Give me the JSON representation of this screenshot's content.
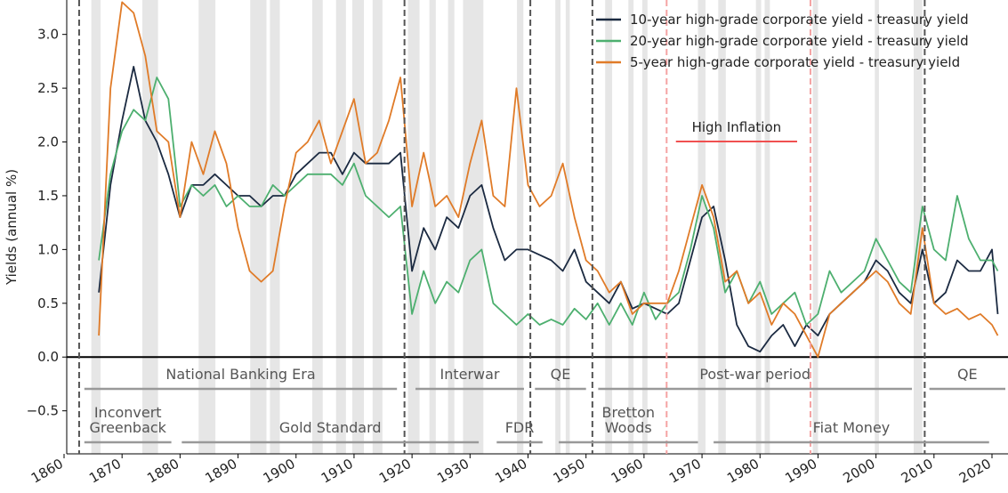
{
  "chart_data": {
    "type": "line",
    "ylabel": "Yields (annual %)",
    "xlim": [
      1860,
      2022.3
    ],
    "ylim": [
      -0.9,
      3.32
    ],
    "xticks": [
      1860,
      1870,
      1880,
      1890,
      1900,
      1910,
      1920,
      1930,
      1940,
      1950,
      1960,
      1970,
      1980,
      1990,
      2000,
      2010,
      2020
    ],
    "yticks": [
      {
        "value": -0.5,
        "label": "−0.5"
      },
      {
        "value": 0,
        "label": "0.0"
      },
      0.5,
      {
        "value": 1,
        "label": "1.0"
      },
      1.5,
      {
        "value": 2,
        "label": "2.0"
      },
      2.5,
      {
        "value": 3,
        "label": "3.0"
      }
    ],
    "legend": "upper right",
    "x": [
      1866,
      1868,
      1870,
      1872,
      1874,
      1876,
      1878,
      1880,
      1882,
      1884,
      1886,
      1888,
      1890,
      1892,
      1894,
      1896,
      1898,
      1900,
      1902,
      1904,
      1906,
      1908,
      1910,
      1912,
      1914,
      1916,
      1918,
      1920,
      1922,
      1924,
      1926,
      1928,
      1930,
      1932,
      1934,
      1936,
      1938,
      1940,
      1942,
      1944,
      1946,
      1948,
      1950,
      1952,
      1954,
      1956,
      1958,
      1960,
      1962,
      1964,
      1966,
      1968,
      1970,
      1972,
      1974,
      1976,
      1978,
      1980,
      1982,
      1984,
      1986,
      1988,
      1990,
      1992,
      1994,
      1996,
      1998,
      2000,
      2002,
      2004,
      2006,
      2008,
      2010,
      2012,
      2014,
      2016,
      2018,
      2020,
      2021
    ],
    "series": [
      {
        "name": "10-year high-grade corporate yield - treasury yield",
        "color": "#1b2a41",
        "values": [
          0.6,
          1.6,
          2.2,
          2.7,
          2.2,
          2.0,
          1.7,
          1.3,
          1.6,
          1.6,
          1.7,
          1.6,
          1.5,
          1.5,
          1.4,
          1.5,
          1.5,
          1.7,
          1.8,
          1.9,
          1.9,
          1.7,
          1.9,
          1.8,
          1.8,
          1.8,
          1.9,
          0.8,
          1.2,
          1.0,
          1.3,
          1.2,
          1.5,
          1.6,
          1.2,
          0.9,
          1.0,
          1.0,
          0.95,
          0.9,
          0.8,
          1.0,
          0.7,
          0.6,
          0.5,
          0.7,
          0.45,
          0.5,
          0.45,
          0.4,
          0.5,
          0.9,
          1.3,
          1.4,
          0.9,
          0.3,
          0.1,
          0.05,
          0.2,
          0.3,
          0.1,
          0.3,
          0.2,
          0.4,
          0.5,
          0.6,
          0.7,
          0.9,
          0.8,
          0.6,
          0.5,
          1.0,
          0.5,
          0.6,
          0.9,
          0.8,
          0.8,
          1.0,
          0.4
        ]
      },
      {
        "name": "20-year high-grade corporate yield - treasury yield",
        "color": "#4daf6f",
        "values": [
          0.9,
          1.7,
          2.1,
          2.3,
          2.2,
          2.6,
          2.4,
          1.4,
          1.6,
          1.5,
          1.6,
          1.4,
          1.5,
          1.4,
          1.4,
          1.6,
          1.5,
          1.6,
          1.7,
          1.7,
          1.7,
          1.6,
          1.8,
          1.5,
          1.4,
          1.3,
          1.4,
          0.4,
          0.8,
          0.5,
          0.7,
          0.6,
          0.9,
          1.0,
          0.5,
          0.4,
          0.3,
          0.4,
          0.3,
          0.35,
          0.3,
          0.45,
          0.35,
          0.5,
          0.3,
          0.5,
          0.3,
          0.6,
          0.35,
          0.5,
          0.6,
          1.0,
          1.5,
          1.2,
          0.6,
          0.8,
          0.5,
          0.7,
          0.4,
          0.5,
          0.6,
          0.3,
          0.4,
          0.8,
          0.6,
          0.7,
          0.8,
          1.1,
          0.9,
          0.7,
          0.6,
          1.4,
          1.0,
          0.9,
          1.5,
          1.1,
          0.9,
          0.9,
          0.8
        ]
      },
      {
        "name": "5-year high-grade corporate yield - treasury yield",
        "color": "#e07b28",
        "values": [
          0.2,
          2.5,
          3.3,
          3.2,
          2.8,
          2.1,
          2.0,
          1.3,
          2.0,
          1.7,
          2.1,
          1.8,
          1.2,
          0.8,
          0.7,
          0.8,
          1.4,
          1.9,
          2.0,
          2.2,
          1.8,
          2.1,
          2.4,
          1.8,
          1.9,
          2.2,
          2.6,
          1.4,
          1.9,
          1.4,
          1.5,
          1.3,
          1.8,
          2.2,
          1.5,
          1.4,
          2.5,
          1.6,
          1.4,
          1.5,
          1.8,
          1.3,
          0.9,
          0.8,
          0.6,
          0.7,
          0.4,
          0.5,
          0.5,
          0.5,
          0.8,
          1.2,
          1.6,
          1.3,
          0.7,
          0.8,
          0.5,
          0.6,
          0.3,
          0.5,
          0.4,
          0.2,
          0.0,
          0.4,
          0.5,
          0.6,
          0.7,
          0.8,
          0.7,
          0.5,
          0.4,
          1.2,
          0.5,
          0.4,
          0.45,
          0.35,
          0.4,
          0.3,
          0.2
        ]
      }
    ],
    "shaded_periods": [
      [
        1864.7,
        1866.3
      ],
      [
        1873.5,
        1876.2
      ],
      [
        1883.2,
        1886.1
      ],
      [
        1892.1,
        1894.9
      ],
      [
        1895.5,
        1897.2
      ],
      [
        1902.8,
        1904.6
      ],
      [
        1906.9,
        1908.6
      ],
      [
        1909.7,
        1911.7
      ],
      [
        1913.2,
        1914.9
      ],
      [
        1919.3,
        1921.3
      ],
      [
        1923,
        1924.1
      ],
      [
        1926.2,
        1927.3
      ],
      [
        1928.8,
        1932.3
      ],
      [
        1938.1,
        1939.2
      ],
      [
        1944.7,
        1945.6
      ],
      [
        1946.5,
        1947.2
      ],
      [
        1953.3,
        1954.5
      ],
      [
        1957.3,
        1958.2
      ],
      [
        1959.7,
        1960.6
      ],
      [
        1969.3,
        1970.6
      ],
      [
        1972.8,
        1974.1
      ],
      [
        1979.3,
        1980.2
      ],
      [
        1980.8,
        1981.7
      ],
      [
        1989.1,
        1990
      ],
      [
        1999.8,
        2000.5
      ],
      [
        2006.5,
        2008
      ]
    ],
    "regime_lines": [
      1862.6,
      1918.7,
      1940.4,
      1951.1,
      2008.4
    ],
    "inflation_lines": [
      1963.9,
      1988.7
    ],
    "high_inflation": {
      "label": "High Inflation",
      "start": 1965.5,
      "end": 1986.4
    },
    "eras_upper": [
      {
        "label": "National Banking Era",
        "start": 1863.5,
        "end": 1917.4
      },
      {
        "label": "Interwar",
        "start": 1920.6,
        "end": 1939.3
      },
      {
        "label": "QE",
        "start": 1941.2,
        "end": 1950
      },
      {
        "label": "Post-war period",
        "start": 1952.1,
        "end": 2006.2
      },
      {
        "label": "QE",
        "start": 2009.2,
        "end": 2022.3
      }
    ],
    "eras_lower": [
      {
        "label": [
          "Inconvert",
          "Greenback"
        ],
        "start": 1863.5,
        "end": 1878.5
      },
      {
        "label": "Gold Standard",
        "start": 1880.3,
        "end": 1931.5
      },
      {
        "label": "FDR",
        "start": 1934.6,
        "end": 1942.5
      },
      {
        "label": [
          "Bretton",
          "Woods"
        ],
        "start": 1945.3,
        "end": 1969.3
      },
      {
        "label": "Fiat Money",
        "start": 1972,
        "end": 2019.5
      }
    ]
  }
}
